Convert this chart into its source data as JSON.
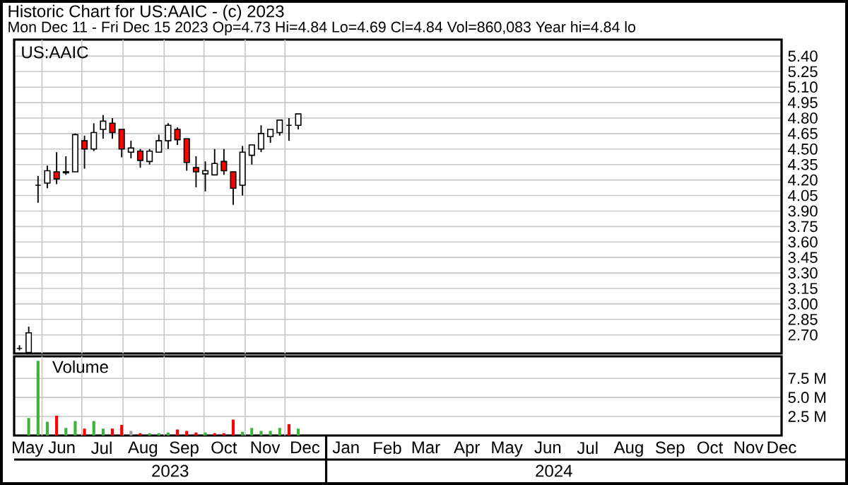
{
  "chart_data": [
    {
      "type": "candlestick",
      "title": "Historic Chart for US:AAIC - (c) 2023",
      "subtitle": "Mon Dec 11 - Fri Dec 15 2023  Op=4.73  Hi=4.84  Lo=4.69  Cl=4.84  Vol=860,083  Year hi=4.84  lo",
      "annotations": [
        "US:AAIC"
      ],
      "x": [
        "2023-05-15",
        "2023-05-22",
        "2023-05-29",
        "2023-06-05",
        "2023-06-12",
        "2023-06-19",
        "2023-06-26",
        "2023-07-03",
        "2023-07-10",
        "2023-07-17",
        "2023-07-24",
        "2023-07-31",
        "2023-08-07",
        "2023-08-14",
        "2023-08-21",
        "2023-08-28",
        "2023-09-04",
        "2023-09-11",
        "2023-09-18",
        "2023-09-25",
        "2023-10-02",
        "2023-10-09",
        "2023-10-16",
        "2023-10-23",
        "2023-10-30",
        "2023-11-06",
        "2023-11-13",
        "2023-11-20",
        "2023-11-27",
        "2023-12-04",
        "2023-12-11"
      ],
      "ohlc": [
        [
          2.57,
          2.6,
          2.55,
          2.57
        ],
        [
          2.53,
          2.78,
          2.53,
          2.72
        ],
        [
          4.15,
          4.24,
          3.98,
          4.15
        ],
        [
          4.17,
          4.34,
          4.12,
          4.29
        ],
        [
          4.28,
          4.47,
          4.16,
          4.21
        ],
        [
          4.27,
          4.43,
          4.25,
          4.28
        ],
        [
          4.28,
          4.65,
          4.28,
          4.64
        ],
        [
          4.58,
          4.63,
          4.31,
          4.5
        ],
        [
          4.5,
          4.75,
          4.48,
          4.66
        ],
        [
          4.69,
          4.83,
          4.6,
          4.77
        ],
        [
          4.75,
          4.8,
          4.6,
          4.66
        ],
        [
          4.69,
          4.69,
          4.42,
          4.5
        ],
        [
          4.47,
          4.58,
          4.41,
          4.51
        ],
        [
          4.48,
          4.5,
          4.32,
          4.39
        ],
        [
          4.38,
          4.5,
          4.35,
          4.48
        ],
        [
          4.47,
          4.64,
          4.47,
          4.58
        ],
        [
          4.58,
          4.75,
          4.5,
          4.73
        ],
        [
          4.69,
          4.71,
          4.54,
          4.59
        ],
        [
          4.6,
          4.6,
          4.29,
          4.37
        ],
        [
          4.32,
          4.43,
          4.13,
          4.28
        ],
        [
          4.26,
          4.38,
          4.09,
          4.29
        ],
        [
          4.25,
          4.5,
          4.25,
          4.36
        ],
        [
          4.38,
          4.5,
          4.25,
          4.29
        ],
        [
          4.28,
          4.28,
          3.96,
          4.12
        ],
        [
          4.15,
          4.53,
          4.05,
          4.47
        ],
        [
          4.44,
          4.54,
          4.35,
          4.54
        ],
        [
          4.5,
          4.73,
          4.47,
          4.65
        ],
        [
          4.62,
          4.69,
          4.56,
          4.69
        ],
        [
          4.66,
          4.78,
          4.63,
          4.78
        ],
        [
          4.73,
          4.8,
          4.58,
          4.73
        ],
        [
          4.73,
          4.84,
          4.69,
          4.84
        ]
      ],
      "colors": [
        "#000000",
        "#ffffff",
        "#000000",
        "#ffffff",
        "#ff0000",
        "#ffffff",
        "#ffffff",
        "#ff0000",
        "#ffffff",
        "#ffffff",
        "#ff0000",
        "#ff0000",
        "#ffffff",
        "#ff0000",
        "#ffffff",
        "#ffffff",
        "#ffffff",
        "#ff0000",
        "#ff0000",
        "#ff0000",
        "#ffffff",
        "#ffffff",
        "#ff0000",
        "#ff0000",
        "#ffffff",
        "#ffffff",
        "#ffffff",
        "#ffffff",
        "#ffffff",
        "#000000",
        "#ffffff"
      ],
      "xlim": [
        "2023-05-11",
        "2024-12-09"
      ],
      "xticks": [
        {
          "value": "2023-06-01",
          "label": null
        },
        {
          "value": "2023-07-01",
          "label": null
        },
        {
          "value": "2023-08-01",
          "label": null
        },
        {
          "value": "2023-09-01",
          "label": null
        },
        {
          "value": "2023-10-01",
          "label": null
        },
        {
          "value": "2023-11-01",
          "label": null
        },
        {
          "value": "2023-12-01",
          "label": null
        }
      ],
      "ylim": [
        2.52,
        5.56
      ],
      "yticks": [
        {
          "value": 5.4,
          "label": "5.40"
        },
        5.25,
        {
          "value": 5.1,
          "label": "5.10"
        },
        4.95,
        {
          "value": 4.8,
          "label": "4.80"
        },
        4.65,
        {
          "value": 4.5,
          "label": "4.50"
        },
        4.35,
        {
          "value": 4.2,
          "label": "4.20"
        },
        4.05,
        {
          "value": 3.9,
          "label": "3.90"
        },
        3.75,
        {
          "value": 3.6,
          "label": "3.60"
        },
        3.45,
        {
          "value": 3.3,
          "label": "3.30"
        },
        3.15,
        {
          "value": 3.0,
          "label": "3.00"
        },
        2.85,
        {
          "value": 2.7,
          "label": "2.70"
        }
      ],
      "tick_labels": "y",
      "grid": true
    },
    {
      "type": "bar",
      "title": "Volume",
      "annotations": [
        "2023",
        "2024"
      ],
      "x": [
        "2023-05-22",
        "2023-05-29",
        "2023-06-05",
        "2023-06-12",
        "2023-06-19",
        "2023-06-26",
        "2023-07-03",
        "2023-07-10",
        "2023-07-17",
        "2023-07-24",
        "2023-07-31",
        "2023-08-07",
        "2023-08-14",
        "2023-08-21",
        "2023-08-28",
        "2023-09-04",
        "2023-09-11",
        "2023-09-18",
        "2023-09-25",
        "2023-10-02",
        "2023-10-09",
        "2023-10-16",
        "2023-10-23",
        "2023-10-30",
        "2023-11-06",
        "2023-11-13",
        "2023-11-20",
        "2023-11-27",
        "2023-12-04",
        "2023-12-11"
      ],
      "values": [
        2.3,
        9.8,
        1.8,
        2.6,
        1.0,
        1.9,
        0.9,
        1.9,
        0.9,
        0.9,
        1.4,
        0.6,
        0.3,
        0.3,
        0.3,
        0.4,
        0.8,
        0.6,
        0.4,
        0.4,
        0.3,
        0.3,
        2.1,
        0.5,
        1.0,
        0.6,
        0.6,
        1.0,
        1.5,
        0.9
      ],
      "colors": [
        "#3cb43c",
        "#3cb43c",
        "#3cb43c",
        "#ff0000",
        "#3cb43c",
        "#3cb43c",
        "#ff0000",
        "#3cb43c",
        "#3cb43c",
        "#ff0000",
        "#ff0000",
        "#a0a0a0",
        "#ff0000",
        "#3cb43c",
        "#3cb43c",
        "#3cb43c",
        "#ff0000",
        "#ff0000",
        "#ff0000",
        "#3cb43c",
        "#ff0000",
        "#ff0000",
        "#ff0000",
        "#3cb43c",
        "#3cb43c",
        "#3cb43c",
        "#3cb43c",
        "#3cb43c",
        "#ff0000",
        "#3cb43c"
      ],
      "xlim": [
        "2023-05-11",
        "2024-12-09"
      ],
      "xticks": [
        {
          "value": "2023-05-21",
          "label": "May"
        },
        {
          "value": "2023-06-16",
          "label": "Jun"
        },
        {
          "value": "2023-07-16",
          "label": "Jul"
        },
        {
          "value": "2023-08-16",
          "label": "Aug"
        },
        {
          "value": "2023-09-16",
          "label": "Sep"
        },
        {
          "value": "2023-10-16",
          "label": "Oct"
        },
        {
          "value": "2023-11-16",
          "label": "Nov"
        },
        {
          "value": "2023-12-16",
          "label": "Dec"
        },
        {
          "value": "2024-01-16",
          "label": "Jan"
        },
        {
          "value": "2024-02-16",
          "label": "Feb"
        },
        {
          "value": "2024-03-16",
          "label": "Mar"
        },
        {
          "value": "2024-04-16",
          "label": "Apr"
        },
        {
          "value": "2024-05-16",
          "label": "May"
        },
        {
          "value": "2024-06-16",
          "label": "Jun"
        },
        {
          "value": "2024-07-16",
          "label": "Jul"
        },
        {
          "value": "2024-08-16",
          "label": "Aug"
        },
        {
          "value": "2024-09-16",
          "label": "Sep"
        },
        {
          "value": "2024-10-16",
          "label": "Oct"
        },
        {
          "value": "2024-11-14",
          "label": "Nov"
        },
        {
          "value": "2024-12-09",
          "label": "Dec"
        },
        {
          "value": "2023-06-01",
          "label": null
        },
        {
          "value": "2023-07-01",
          "label": null
        },
        {
          "value": "2023-08-01",
          "label": null
        },
        {
          "value": "2023-09-01",
          "label": null
        },
        {
          "value": "2023-10-01",
          "label": null
        },
        {
          "value": "2023-11-01",
          "label": null
        },
        {
          "value": "2023-12-01",
          "label": null
        }
      ],
      "ylim": [
        0,
        10.4
      ],
      "yticks": [
        {
          "value": 2.5,
          "label": "2.5 M"
        },
        {
          "value": 5.0,
          "label": "5.0 M"
        },
        {
          "value": 7.5,
          "label": "7.5 M"
        }
      ],
      "grid": true
    }
  ]
}
